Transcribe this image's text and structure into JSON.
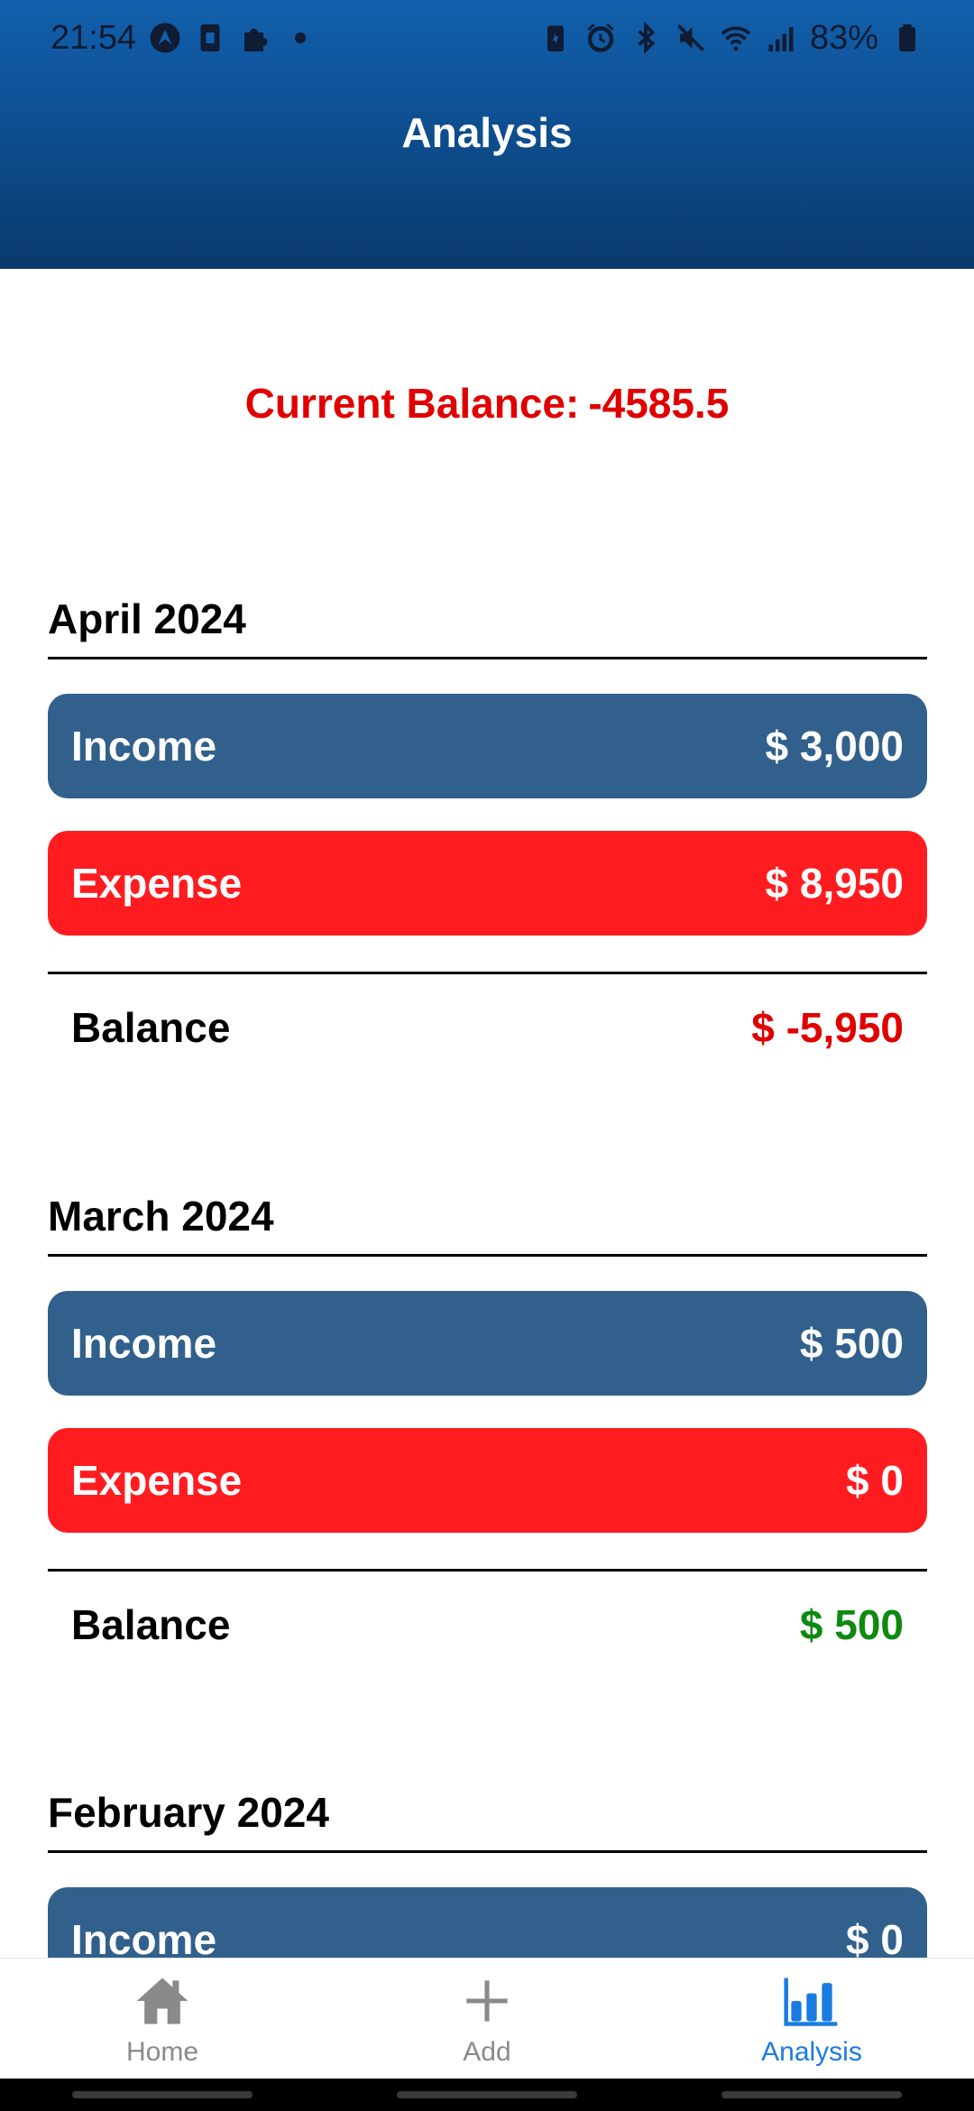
{
  "status_bar": {
    "time": "21:54",
    "battery": "83%"
  },
  "header": {
    "title": "Analysis"
  },
  "current_balance": {
    "label": "Current Balance:",
    "value": "-4585.5",
    "color": "#e00000"
  },
  "months": [
    {
      "title": "April 2024",
      "income_label": "Income",
      "income_value": "$ 3,000",
      "expense_label": "Expense",
      "expense_value": "$ 8,950",
      "balance_label": "Balance",
      "balance_value": "$ -5,950"
    },
    {
      "title": "March 2024",
      "income_label": "Income",
      "income_value": "$ 500",
      "expense_label": "Expense",
      "expense_value": "$ 0",
      "balance_label": "Balance",
      "balance_value": "$ 500"
    },
    {
      "title": "February 2024",
      "income_label": "Income",
      "income_value": "$ 0"
    }
  ],
  "nav": {
    "home": "Home",
    "add": "Add",
    "analysis": "Analysis"
  },
  "colors": {
    "header_top": "#1260ad",
    "income": "#31608c",
    "expense": "#ff1c20",
    "negative": "#e00000",
    "positive": "#0e8a12",
    "nav_active": "#1a7be0"
  }
}
